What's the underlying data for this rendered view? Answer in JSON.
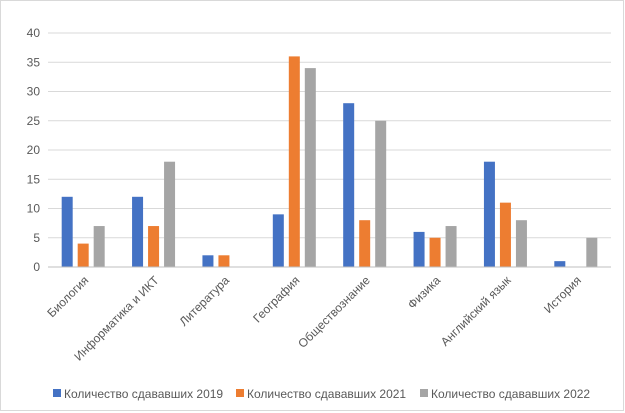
{
  "chart_data": {
    "type": "bar",
    "title": "",
    "xlabel": "",
    "ylabel": "",
    "ylim": [
      0,
      40
    ],
    "yticks": [
      0,
      5,
      10,
      15,
      20,
      25,
      30,
      35,
      40
    ],
    "grid": "horizontal",
    "legend_position": "bottom",
    "categories": [
      "Биология",
      "Информатика и ИКТ",
      "Литература",
      "География",
      "Обществознание",
      "Физика",
      "Английский язык",
      "История"
    ],
    "series": [
      {
        "name": "Количество сдававших 2019",
        "color": "#4472c4",
        "values": [
          12,
          12,
          2,
          9,
          28,
          6,
          18,
          1
        ]
      },
      {
        "name": "Количество сдававших 2021",
        "color": "#ed7d31",
        "values": [
          4,
          7,
          2,
          36,
          8,
          5,
          11,
          0
        ]
      },
      {
        "name": "Количество сдававших 2022",
        "color": "#a5a5a5",
        "values": [
          7,
          18,
          0,
          34,
          25,
          7,
          8,
          5
        ]
      }
    ]
  }
}
